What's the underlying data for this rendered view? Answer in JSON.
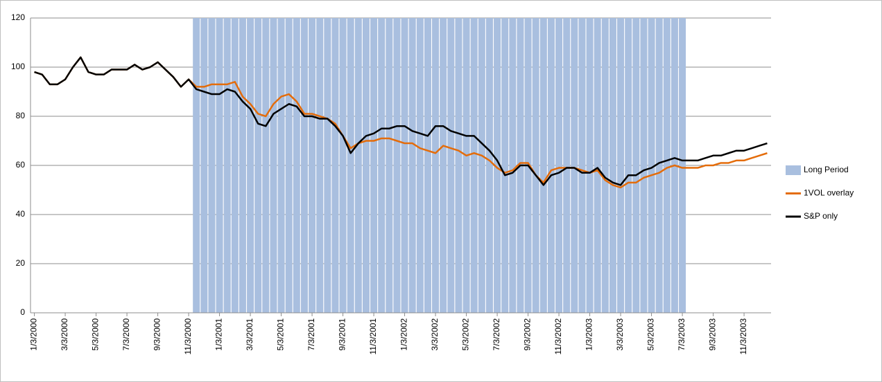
{
  "chart_data": {
    "type": "line",
    "categories": [
      "1/3/2000",
      null,
      null,
      null,
      "3/3/2000",
      null,
      null,
      null,
      "5/3/2000",
      null,
      null,
      null,
      "7/3/2000",
      null,
      null,
      null,
      "9/3/2000",
      null,
      null,
      null,
      "11/3/2000",
      null,
      null,
      null,
      "1/3/2001",
      null,
      null,
      null,
      "3/3/2001",
      null,
      null,
      null,
      "5/3/2001",
      null,
      null,
      null,
      "7/3/2001",
      null,
      null,
      null,
      "9/3/2001",
      null,
      null,
      null,
      "11/3/2001",
      null,
      null,
      null,
      "1/3/2002",
      null,
      null,
      null,
      "3/3/2002",
      null,
      null,
      null,
      "5/3/2002",
      null,
      null,
      null,
      "7/3/2002",
      null,
      null,
      null,
      "9/3/2002",
      null,
      null,
      null,
      "11/3/2002",
      null,
      null,
      null,
      "1/3/2003",
      null,
      null,
      null,
      "3/3/2003",
      null,
      null,
      null,
      "5/3/2003",
      null,
      null,
      null,
      "7/3/2003",
      null,
      null,
      null,
      "9/3/2003",
      null,
      null,
      null,
      "11/3/2003",
      null,
      null,
      null
    ],
    "series": [
      {
        "name": "Long Period",
        "type": "bar",
        "color": "#a9bfdf",
        "values": [
          0,
          0,
          0,
          0,
          0,
          0,
          0,
          0,
          0,
          0,
          0,
          0,
          0,
          0,
          0,
          0,
          0,
          0,
          0,
          0,
          0,
          120,
          120,
          120,
          120,
          120,
          120,
          120,
          120,
          120,
          120,
          120,
          120,
          120,
          120,
          120,
          120,
          120,
          120,
          120,
          120,
          120,
          120,
          120,
          120,
          120,
          120,
          120,
          120,
          120,
          120,
          120,
          120,
          120,
          120,
          120,
          120,
          120,
          120,
          120,
          120,
          120,
          120,
          120,
          120,
          120,
          120,
          120,
          120,
          120,
          120,
          120,
          120,
          120,
          120,
          120,
          120,
          120,
          120,
          120,
          120,
          120,
          120,
          120,
          120,
          0,
          0,
          0,
          0,
          0,
          0,
          0,
          0,
          0,
          0,
          0
        ]
      },
      {
        "name": "1VOL overlay",
        "type": "line",
        "color": "#e46c0a",
        "values": [
          98,
          97,
          93,
          93,
          95,
          100,
          104,
          98,
          97,
          97,
          99,
          99,
          99,
          101,
          99,
          100,
          102,
          99,
          96,
          92,
          95,
          92,
          92,
          93,
          93,
          93,
          94,
          88,
          85,
          81,
          80,
          85,
          88,
          89,
          86,
          81,
          81,
          80,
          79,
          77,
          72,
          67,
          69,
          70,
          70,
          71,
          71,
          70,
          69,
          69,
          67,
          66,
          65,
          68,
          67,
          66,
          64,
          65,
          64,
          62,
          59,
          57,
          58,
          61,
          61,
          56,
          53,
          58,
          59,
          59,
          59,
          58,
          57,
          58,
          54,
          52,
          51,
          53,
          53,
          55,
          56,
          57,
          59,
          60,
          59,
          59,
          59,
          60,
          60,
          61,
          61,
          62,
          62,
          63,
          64,
          65
        ]
      },
      {
        "name": "S&P only",
        "type": "line",
        "color": "#000000",
        "values": [
          98,
          97,
          93,
          93,
          95,
          100,
          104,
          98,
          97,
          97,
          99,
          99,
          99,
          101,
          99,
          100,
          102,
          99,
          96,
          92,
          95,
          91,
          90,
          89,
          89,
          91,
          90,
          86,
          83,
          77,
          76,
          81,
          83,
          85,
          84,
          80,
          80,
          79,
          79,
          76,
          72,
          65,
          69,
          72,
          73,
          75,
          75,
          76,
          76,
          74,
          73,
          72,
          76,
          76,
          74,
          73,
          72,
          72,
          69,
          66,
          62,
          56,
          57,
          60,
          60,
          56,
          52,
          56,
          57,
          59,
          59,
          57,
          57,
          59,
          55,
          53,
          52,
          56,
          56,
          58,
          59,
          61,
          62,
          63,
          62,
          62,
          62,
          63,
          64,
          64,
          65,
          66,
          66,
          67,
          68,
          69
        ]
      }
    ],
    "ylim": [
      0,
      120
    ],
    "yticks": [
      0,
      20,
      40,
      60,
      80,
      100,
      120
    ],
    "grid": true,
    "legend": "right"
  }
}
